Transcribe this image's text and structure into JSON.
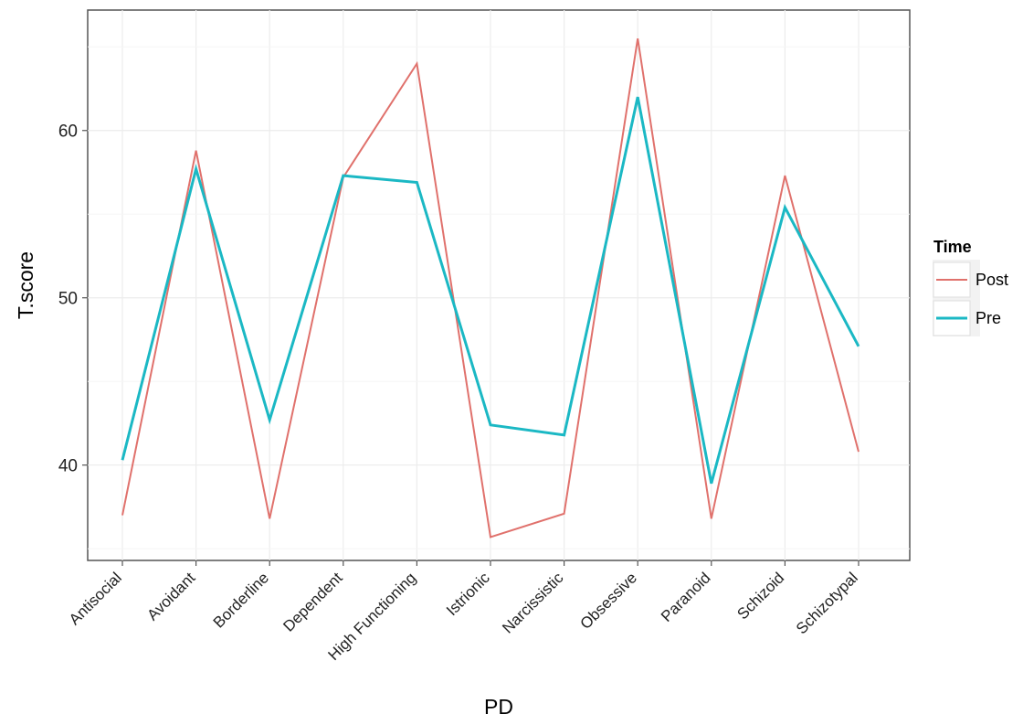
{
  "chart_data": {
    "type": "line",
    "xlabel": "PD",
    "ylabel": "T.score",
    "categories": [
      "Antisocial",
      "Avoidant",
      "Borderline",
      "Dependent",
      "High Functioning",
      "Istrionic",
      "Narcissistic",
      "Obsessive",
      "Paranoid",
      "Schizoid",
      "Schizotypal"
    ],
    "ylim": [
      34.3,
      67.2
    ],
    "yticks": [
      40,
      50,
      60
    ],
    "grid": true,
    "series": [
      {
        "name": "Post",
        "color": "#e0716c",
        "values": [
          37.0,
          58.8,
          36.8,
          57.2,
          64.0,
          35.7,
          37.1,
          65.5,
          36.8,
          57.3,
          40.8
        ]
      },
      {
        "name": "Pre",
        "color": "#1bb8c4",
        "values": [
          40.3,
          57.7,
          42.7,
          57.3,
          56.9,
          42.4,
          41.8,
          62.0,
          38.9,
          55.4,
          47.1
        ]
      }
    ],
    "legend": {
      "title": "Time",
      "placement": "right"
    }
  }
}
